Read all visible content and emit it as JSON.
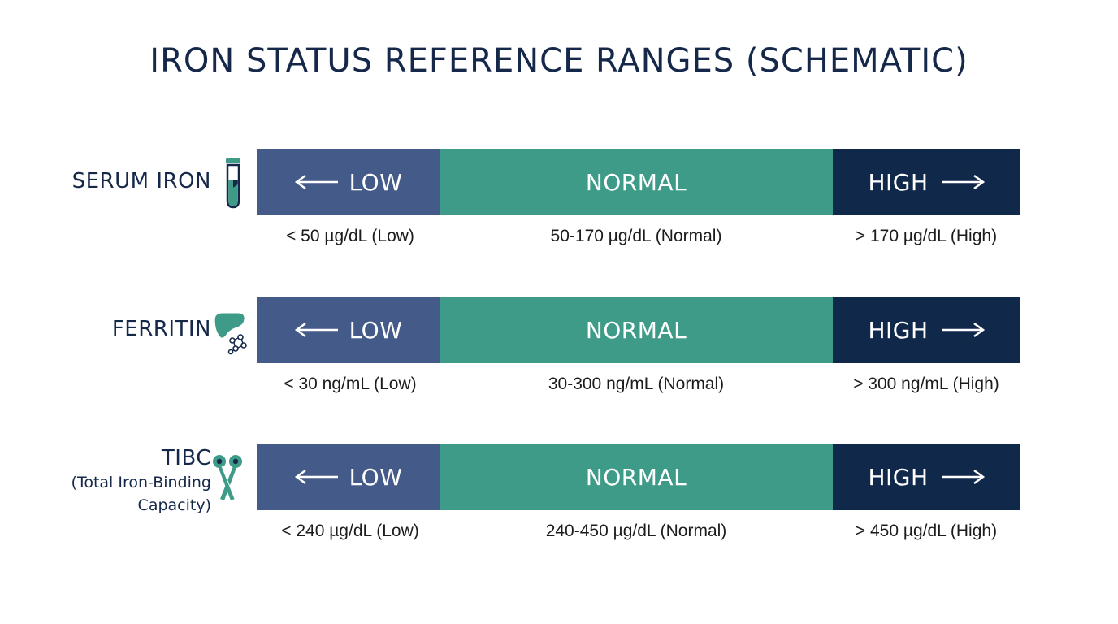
{
  "title": "IRON STATUS REFERENCE RANGES (SCHEMATIC)",
  "colors": {
    "low": "#445a88",
    "normal": "#3d9b87",
    "high": "#10284a",
    "icon": "#3d9b87",
    "text": "#15284a"
  },
  "segments": {
    "low": "LOW",
    "normal": "NORMAL",
    "high": "HIGH"
  },
  "rows": [
    {
      "label": "SERUM IRON",
      "icon": "test-tube-icon",
      "ranges": {
        "low": "< 50 µg/dL (Low)",
        "normal": "50-170 µg/dL (Normal)",
        "high": "> 170 µg/dL (High)"
      }
    },
    {
      "label": "FERRITIN",
      "icon": "liver-molecule-icon",
      "ranges": {
        "low": "< 30 ng/mL (Low)",
        "normal": "30-300 ng/mL (Normal)",
        "high": "> 300 ng/mL (High)"
      }
    },
    {
      "label": "TIBC",
      "sublabel_1": "(Total Iron-Binding",
      "sublabel_2": "Capacity)",
      "icon": "transferrin-protein-icon",
      "ranges": {
        "low": "< 240 µg/dL (Low)",
        "normal": "240-450 µg/dL (Normal)",
        "high": "> 450 µg/dL (High)"
      }
    }
  ]
}
